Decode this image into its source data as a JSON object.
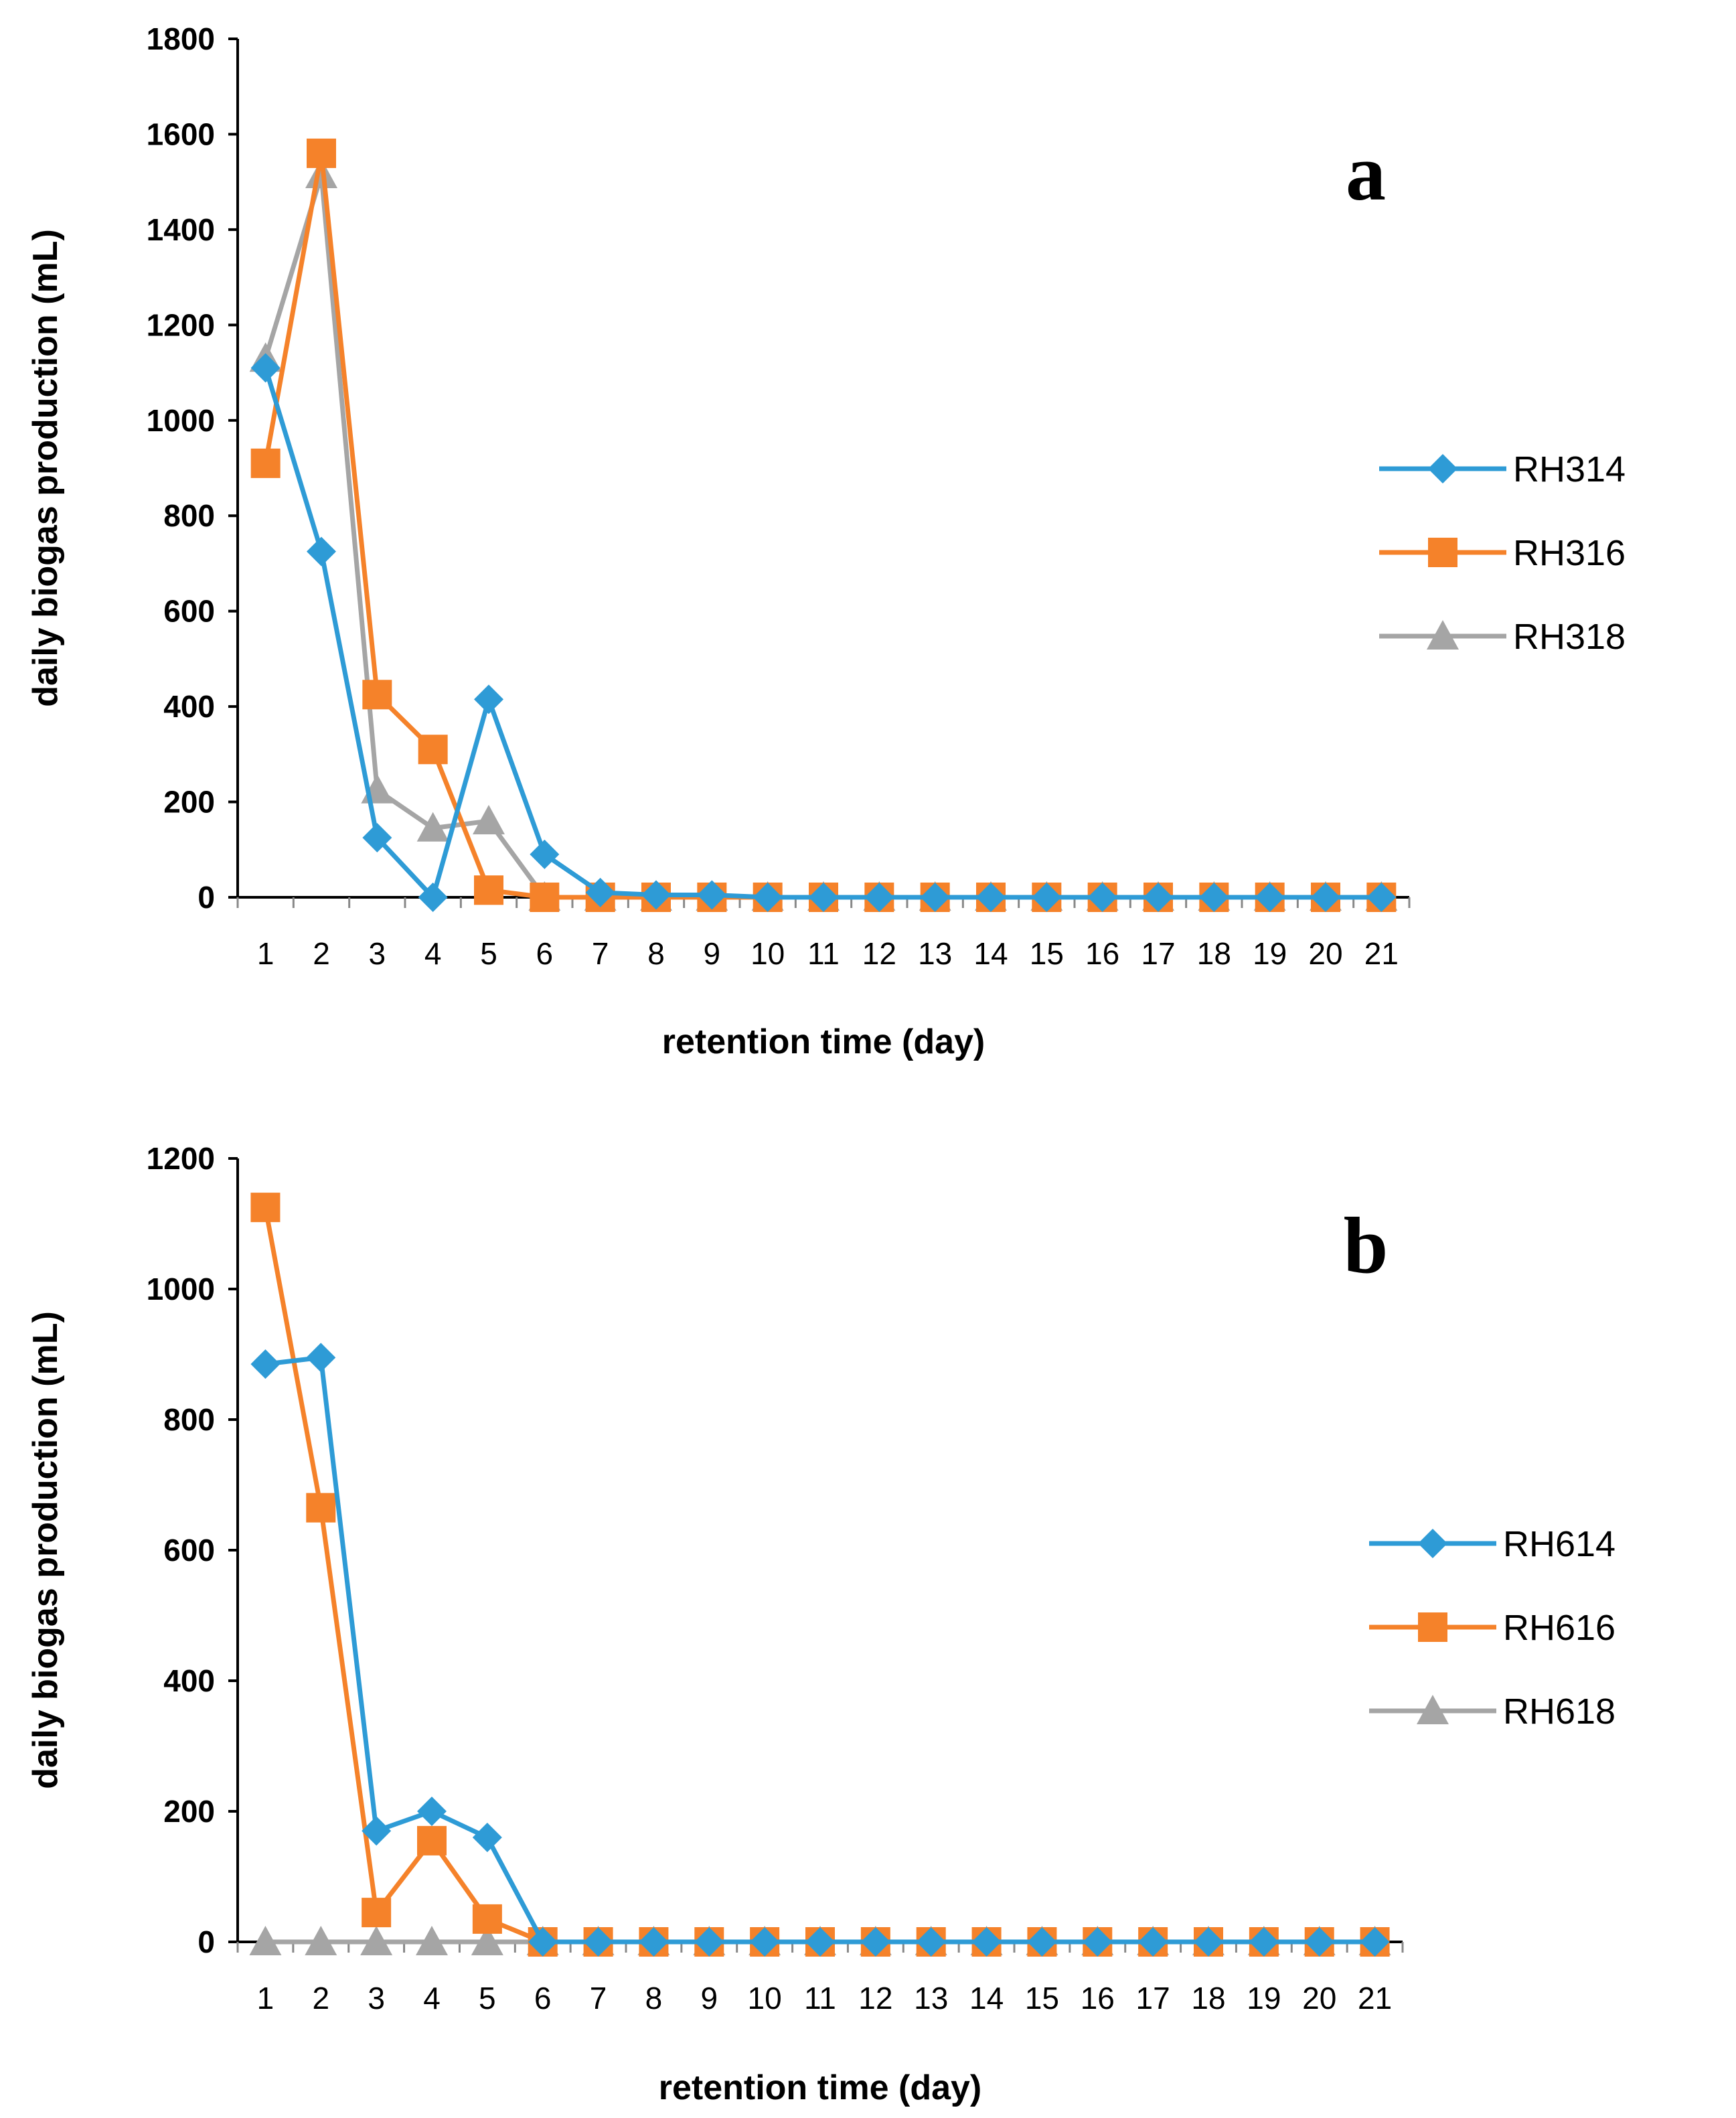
{
  "colors": {
    "blue": "#2E9BD6",
    "orange": "#F5822A",
    "gray": "#A5A5A5",
    "axis": "#000000",
    "tick": "#888888"
  },
  "chart_data": [
    {
      "type": "line",
      "panel_label": "a",
      "xlabel": "retention time (day)",
      "ylabel": "daily biogas production (mL)",
      "categories": [
        "1",
        "2",
        "3",
        "4",
        "5",
        "6",
        "7",
        "8",
        "9",
        "10",
        "11",
        "12",
        "13",
        "14",
        "15",
        "16",
        "17",
        "18",
        "19",
        "20",
        "21"
      ],
      "ylim": [
        0,
        1800
      ],
      "yticks": [
        0,
        200,
        400,
        600,
        800,
        1000,
        1200,
        1400,
        1600,
        1800
      ],
      "legend_position": "right",
      "series": [
        {
          "name": "RH314",
          "marker": "diamond",
          "color": "#2E9BD6",
          "values": [
            1110,
            725,
            125,
            0,
            415,
            90,
            10,
            5,
            5,
            0,
            0,
            0,
            0,
            0,
            0,
            0,
            0,
            0,
            0,
            0,
            0
          ]
        },
        {
          "name": "RH316",
          "marker": "square",
          "color": "#F5822A",
          "values": [
            910,
            1560,
            425,
            310,
            15,
            0,
            0,
            0,
            0,
            0,
            0,
            0,
            0,
            0,
            0,
            0,
            0,
            0,
            0,
            0,
            0
          ]
        },
        {
          "name": "RH318",
          "marker": "triangle",
          "color": "#A5A5A5",
          "values": [
            1130,
            1515,
            225,
            145,
            160,
            0,
            0,
            0,
            0,
            0,
            0,
            0,
            0,
            0,
            0,
            0,
            0,
            0,
            0,
            0,
            0
          ]
        }
      ]
    },
    {
      "type": "line",
      "panel_label": "b",
      "xlabel": "retention time (day)",
      "ylabel": "daily biogas production (mL)",
      "categories": [
        "1",
        "2",
        "3",
        "4",
        "5",
        "6",
        "7",
        "8",
        "9",
        "10",
        "11",
        "12",
        "13",
        "14",
        "15",
        "16",
        "17",
        "18",
        "19",
        "20",
        "21"
      ],
      "ylim": [
        0,
        1200
      ],
      "yticks": [
        0,
        200,
        400,
        600,
        800,
        1000,
        1200
      ],
      "legend_position": "right",
      "series": [
        {
          "name": "RH614",
          "marker": "diamond",
          "color": "#2E9BD6",
          "values": [
            885,
            895,
            170,
            200,
            160,
            0,
            0,
            0,
            0,
            0,
            0,
            0,
            0,
            0,
            0,
            0,
            0,
            0,
            0,
            0,
            0
          ]
        },
        {
          "name": "RH616",
          "marker": "square",
          "color": "#F5822A",
          "values": [
            1125,
            665,
            45,
            155,
            35,
            0,
            0,
            0,
            0,
            0,
            0,
            0,
            0,
            0,
            0,
            0,
            0,
            0,
            0,
            0,
            0
          ]
        },
        {
          "name": "RH618",
          "marker": "triangle",
          "color": "#A5A5A5",
          "values": [
            0,
            0,
            0,
            0,
            0,
            0,
            0,
            0,
            0,
            0,
            0,
            0,
            0,
            0,
            0,
            0,
            0,
            0,
            0,
            0,
            0
          ]
        }
      ]
    }
  ]
}
